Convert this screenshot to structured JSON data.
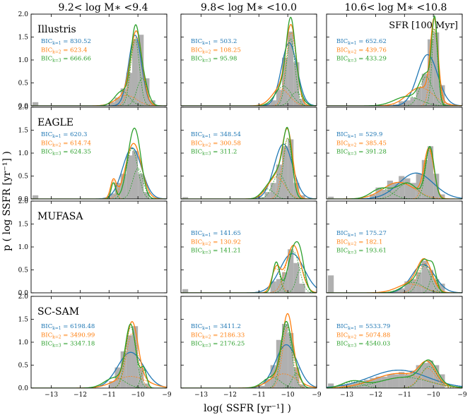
{
  "chart_data": {
    "type": "histogram-grid",
    "xlabel": "log( SSFR [yr⁻¹] )",
    "ylabel": "p ( log SSFR [yr⁻¹] )",
    "xlim": [
      -13.7,
      -9
    ],
    "ylim": [
      0,
      2.0
    ],
    "xticks": [
      -13,
      -12,
      -11,
      -10,
      -9
    ],
    "yticks": [
      0.0,
      0.5,
      1.0,
      1.5,
      2.0
    ],
    "columns": [
      "9.2< log M∗ <9.4",
      "9.8< log M∗ <10.0",
      "10.6< log M∗ <10.8"
    ],
    "rows": [
      "Illustris",
      "EAGLE",
      "MUFASA",
      "SC-SAM"
    ],
    "corner_note": "SFR [100 Myr]",
    "legend": [
      {
        "key": "k1",
        "label": "BIC k=1",
        "color": "#1f77b4"
      },
      {
        "key": "k2",
        "label": "BIC k=2",
        "color": "#ff7f0e"
      },
      {
        "key": "k3",
        "label": "BIC k=3",
        "color": "#2ca02c"
      }
    ],
    "hist_color": "#b0b0b0",
    "bic_prefix": "BIC",
    "bic_sub": [
      "k=1",
      "k=2",
      "k=3"
    ],
    "panels": [
      {
        "row": 0,
        "col": 0,
        "bic": [
          "830.52",
          "623.4",
          "666.66"
        ],
        "quench_frac": 0.08,
        "bars": [
          [
            -10.9,
            0.08
          ],
          [
            -10.7,
            0.18
          ],
          [
            -10.5,
            0.38
          ],
          [
            -10.3,
            0.72
          ],
          [
            -10.1,
            1.45
          ],
          [
            -9.9,
            1.55
          ],
          [
            -9.7,
            0.6
          ],
          [
            -9.5,
            0.12
          ]
        ],
        "fits": {
          "k1": [
            [
              0.85,
              -10.1,
              0.22
            ]
          ],
          "k2": [
            [
              0.75,
              -10.05,
              0.2
            ],
            [
              0.2,
              -10.4,
              0.35
            ]
          ],
          "k3": [
            [
              0.55,
              -10.1,
              0.15
            ],
            [
              0.2,
              -10.55,
              0.25
            ],
            [
              0.27,
              -9.85,
              0.18
            ]
          ]
        }
      },
      {
        "row": 0,
        "col": 1,
        "bic": [
          "503.2",
          "108.25",
          "95.98"
        ],
        "quench_frac": 0.0,
        "bars": [
          [
            -10.7,
            0.05
          ],
          [
            -10.5,
            0.12
          ],
          [
            -10.3,
            0.35
          ],
          [
            -10.1,
            1.05
          ],
          [
            -9.9,
            1.62
          ],
          [
            -9.7,
            0.95
          ],
          [
            -9.5,
            0.15
          ]
        ],
        "fits": {
          "k1": [
            [
              0.93,
              -9.95,
              0.27
            ]
          ],
          "k2": [
            [
              0.72,
              -9.88,
              0.18
            ],
            [
              0.28,
              -10.25,
              0.3
            ]
          ],
          "k3": [
            [
              0.55,
              -9.9,
              0.15
            ],
            [
              0.3,
              -10.15,
              0.28
            ],
            [
              0.15,
              -9.7,
              0.2
            ]
          ]
        }
      },
      {
        "row": 0,
        "col": 2,
        "bic": [
          "652.62",
          "439.76",
          "433.29"
        ],
        "quench_frac": 0.0,
        "bars": [
          [
            -11.3,
            0.03
          ],
          [
            -11.1,
            0.1
          ],
          [
            -10.9,
            0.12
          ],
          [
            -10.7,
            0.18
          ],
          [
            -10.5,
            0.4
          ],
          [
            -10.3,
            0.7
          ],
          [
            -10.1,
            1.45
          ],
          [
            -9.9,
            1.6
          ],
          [
            -9.7,
            0.45
          ],
          [
            -9.5,
            0.05
          ]
        ],
        "fits": {
          "k1": [
            [
              0.98,
              -10.2,
              0.35
            ]
          ],
          "k2": [
            [
              0.55,
              -9.97,
              0.13
            ],
            [
              0.45,
              -10.45,
              0.45
            ]
          ],
          "k3": [
            [
              0.42,
              -9.95,
              0.1
            ],
            [
              0.35,
              -10.25,
              0.22
            ],
            [
              0.23,
              -10.9,
              0.45
            ]
          ]
        }
      },
      {
        "row": 1,
        "col": 0,
        "bic": [
          "620.3",
          "614.74",
          "624.35"
        ],
        "quench_frac": 0.08,
        "bars": [
          [
            -10.9,
            0.12
          ],
          [
            -10.7,
            0.35
          ],
          [
            -10.5,
            0.55
          ],
          [
            -10.3,
            0.95
          ],
          [
            -10.1,
            1.05
          ],
          [
            -9.9,
            0.55
          ],
          [
            -9.7,
            0.15
          ]
        ],
        "fits": {
          "k1": [
            [
              0.92,
              -10.2,
              0.33
            ]
          ],
          "k2": [
            [
              0.82,
              -10.15,
              0.27
            ],
            [
              0.1,
              -10.85,
              0.1
            ]
          ],
          "k3": [
            [
              0.55,
              -10.2,
              0.2
            ],
            [
              0.3,
              -10.0,
              0.18
            ],
            [
              0.07,
              -10.85,
              0.08
            ]
          ]
        }
      },
      {
        "row": 1,
        "col": 1,
        "bic": [
          "348.54",
          "300.58",
          "311.2"
        ],
        "quench_frac": 0.04,
        "bars": [
          [
            -10.9,
            0.04
          ],
          [
            -10.7,
            0.15
          ],
          [
            -10.5,
            0.35
          ],
          [
            -10.3,
            0.75
          ],
          [
            -10.1,
            1.15
          ],
          [
            -9.9,
            1.3
          ],
          [
            -9.7,
            0.35
          ],
          [
            -9.5,
            0.08
          ]
        ],
        "fits": {
          "k1": [
            [
              0.96,
              -10.15,
              0.32
            ]
          ],
          "k2": [
            [
              0.6,
              -10.0,
              0.18
            ],
            [
              0.36,
              -10.4,
              0.3
            ]
          ],
          "k3": [
            [
              0.5,
              -10.0,
              0.15
            ],
            [
              0.3,
              -10.3,
              0.22
            ],
            [
              0.12,
              -10.7,
              0.22
            ]
          ]
        }
      },
      {
        "row": 1,
        "col": 2,
        "bic": [
          "529.9",
          "385.45",
          "391.28"
        ],
        "quench_frac": 0.05,
        "bars": [
          [
            -12.1,
            0.1
          ],
          [
            -11.9,
            0.25
          ],
          [
            -11.7,
            0.2
          ],
          [
            -11.5,
            0.4
          ],
          [
            -11.3,
            0.35
          ],
          [
            -11.1,
            0.5
          ],
          [
            -10.9,
            0.45
          ],
          [
            -10.7,
            0.35
          ],
          [
            -10.5,
            0.55
          ],
          [
            -10.3,
            0.85
          ],
          [
            -10.1,
            1.15
          ],
          [
            -9.9,
            0.55
          ],
          [
            -9.7,
            0.1
          ]
        ],
        "fits": {
          "k1": [
            [
              0.85,
              -10.6,
              0.6
            ]
          ],
          "k2": [
            [
              0.45,
              -10.15,
              0.17
            ],
            [
              0.5,
              -11.2,
              0.55
            ]
          ],
          "k3": [
            [
              0.42,
              -10.12,
              0.15
            ],
            [
              0.3,
              -10.9,
              0.35
            ],
            [
              0.2,
              -11.8,
              0.35
            ]
          ]
        }
      },
      {
        "row": 2,
        "col": 1,
        "bic": [
          "141.65",
          "130.92",
          "141.21"
        ],
        "quench_frac": 0.08,
        "bars": [
          [
            -10.5,
            0.25
          ],
          [
            -10.3,
            0.3
          ],
          [
            -10.1,
            0.45
          ],
          [
            -9.9,
            0.95
          ],
          [
            -9.7,
            0.65
          ],
          [
            -9.5,
            0.2
          ]
        ],
        "fits": {
          "k1": [
            [
              0.9,
              -9.85,
              0.42
            ]
          ],
          "k2": [
            [
              0.65,
              -9.8,
              0.25
            ],
            [
              0.2,
              -10.4,
              0.15
            ]
          ],
          "k3": [
            [
              0.45,
              -9.8,
              0.2
            ],
            [
              0.2,
              -10.4,
              0.12
            ],
            [
              0.2,
              -9.55,
              0.15
            ]
          ]
        }
      },
      {
        "row": 2,
        "col": 2,
        "bic": [
          "175.27",
          "182.1",
          "193.61"
        ],
        "quench_frac": 0.38,
        "bars": [
          [
            -11.3,
            0.05
          ],
          [
            -11.1,
            0.1
          ],
          [
            -10.9,
            0.25
          ],
          [
            -10.7,
            0.3
          ],
          [
            -10.5,
            0.45
          ],
          [
            -10.3,
            0.7
          ],
          [
            -10.1,
            0.5
          ],
          [
            -9.9,
            0.3
          ],
          [
            -9.7,
            0.2
          ]
        ],
        "fits": {
          "k1": [
            [
              0.62,
              -10.35,
              0.4
            ]
          ],
          "k2": [
            [
              0.4,
              -10.3,
              0.25
            ],
            [
              0.22,
              -10.8,
              0.45
            ]
          ],
          "k3": [
            [
              0.3,
              -10.3,
              0.2
            ],
            [
              0.2,
              -10.7,
              0.35
            ],
            [
              0.12,
              -10.0,
              0.12
            ]
          ]
        }
      },
      {
        "row": 3,
        "col": 0,
        "bic": [
          "6198.48",
          "3490.99",
          "3347.18"
        ],
        "quench_frac": 0.0,
        "bars": [
          [
            -10.9,
            0.15
          ],
          [
            -10.7,
            0.45
          ],
          [
            -10.5,
            0.8
          ],
          [
            -10.3,
            1.15
          ],
          [
            -10.1,
            1.35
          ],
          [
            -9.9,
            0.45
          ],
          [
            -9.7,
            0.1
          ]
        ],
        "fits": {
          "k1": [
            [
              0.88,
              -10.25,
              0.45
            ]
          ],
          "k2": [
            [
              0.6,
              -10.2,
              0.2
            ],
            [
              0.35,
              -10.25,
              0.55
            ]
          ],
          "k3": [
            [
              0.6,
              -10.25,
              0.18
            ],
            [
              0.2,
              -10.8,
              0.35
            ],
            [
              0.1,
              -9.8,
              0.1
            ]
          ]
        }
      },
      {
        "row": 3,
        "col": 1,
        "bic": [
          "3411.2",
          "2186.33",
          "2176.25"
        ],
        "quench_frac": 0.0,
        "bars": [
          [
            -10.9,
            0.05
          ],
          [
            -10.7,
            0.2
          ],
          [
            -10.5,
            0.5
          ],
          [
            -10.3,
            1.05
          ],
          [
            -10.1,
            1.4
          ],
          [
            -9.9,
            1.2
          ],
          [
            -9.7,
            0.45
          ],
          [
            -9.5,
            0.08
          ]
        ],
        "fits": {
          "k1": [
            [
              0.9,
              -10.05,
              0.38
            ]
          ],
          "k2": [
            [
              0.6,
              -10.0,
              0.18
            ],
            [
              0.35,
              -10.15,
              0.45
            ]
          ],
          "k3": [
            [
              0.62,
              -10.05,
              0.18
            ],
            [
              0.18,
              -10.55,
              0.3
            ],
            [
              0.12,
              -9.7,
              0.15
            ]
          ]
        }
      },
      {
        "row": 3,
        "col": 2,
        "bic": [
          "5533.79",
          "5074.88",
          "4540.03"
        ],
        "quench_frac": 0.1,
        "bars": [
          [
            -13.1,
            0.08
          ],
          [
            -12.9,
            0.1
          ],
          [
            -12.7,
            0.12
          ],
          [
            -12.5,
            0.15
          ],
          [
            -12.3,
            0.18
          ],
          [
            -12.1,
            0.22
          ],
          [
            -11.9,
            0.25
          ],
          [
            -11.7,
            0.25
          ],
          [
            -11.5,
            0.3
          ],
          [
            -11.3,
            0.3
          ],
          [
            -11.1,
            0.35
          ],
          [
            -10.9,
            0.3
          ],
          [
            -10.7,
            0.38
          ],
          [
            -10.5,
            0.5
          ],
          [
            -10.3,
            0.55
          ],
          [
            -10.1,
            0.6
          ],
          [
            -9.9,
            0.5
          ],
          [
            -9.7,
            0.3
          ]
        ],
        "fits": {
          "k1": [
            [
              0.98,
              -11.2,
              1.0
            ]
          ],
          "k2": [
            [
              0.3,
              -10.2,
              0.28
            ],
            [
              0.68,
              -11.2,
              0.85
            ]
          ],
          "k3": [
            [
              0.33,
              -10.15,
              0.28
            ],
            [
              0.5,
              -11.0,
              0.85
            ],
            [
              0.12,
              -12.8,
              0.35
            ]
          ]
        }
      }
    ]
  }
}
